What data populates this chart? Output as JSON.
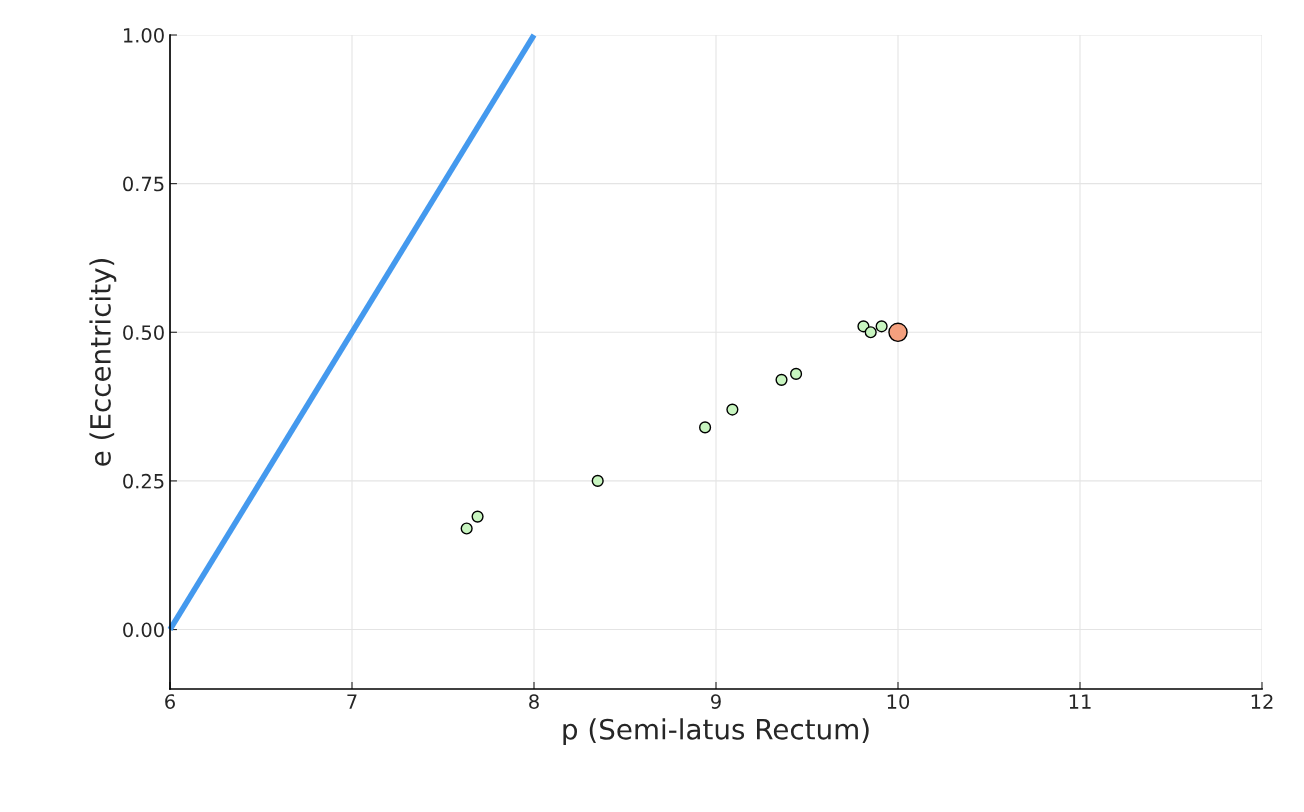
{
  "chart_data": {
    "type": "scatter",
    "xlabel": "p (Semi-latus Rectum)",
    "ylabel": "e (Eccentricity)",
    "xlim": [
      6,
      12
    ],
    "xticks": [
      6,
      7,
      8,
      9,
      10,
      11,
      12
    ],
    "ylim": [
      -0.1,
      1.0
    ],
    "yticks": [
      {
        "value": 0,
        "label": "0.00"
      },
      {
        "value": 0.25,
        "label": "0.25"
      },
      {
        "value": 0.5,
        "label": "0.50"
      },
      {
        "value": 0.75,
        "label": "0.75"
      },
      {
        "value": 1.0,
        "label": "1.00"
      }
    ],
    "grid": true,
    "marker": "circle",
    "series": [
      {
        "type": "line",
        "color": "#4499ee",
        "x": [
          6,
          8
        ],
        "values": [
          0,
          1
        ],
        "marker": "none"
      },
      {
        "color": "#c8f5c0",
        "x": [
          7.63,
          7.69,
          8.35,
          8.94,
          9.09,
          9.36,
          9.44,
          9.81,
          9.85,
          9.91
        ],
        "values": [
          0.17,
          0.19,
          0.25,
          0.34,
          0.37,
          0.42,
          0.43,
          0.51,
          0.5,
          0.51
        ]
      },
      {
        "color": "#f4a07e",
        "x": [
          10
        ],
        "values": [
          0.5
        ]
      }
    ]
  }
}
